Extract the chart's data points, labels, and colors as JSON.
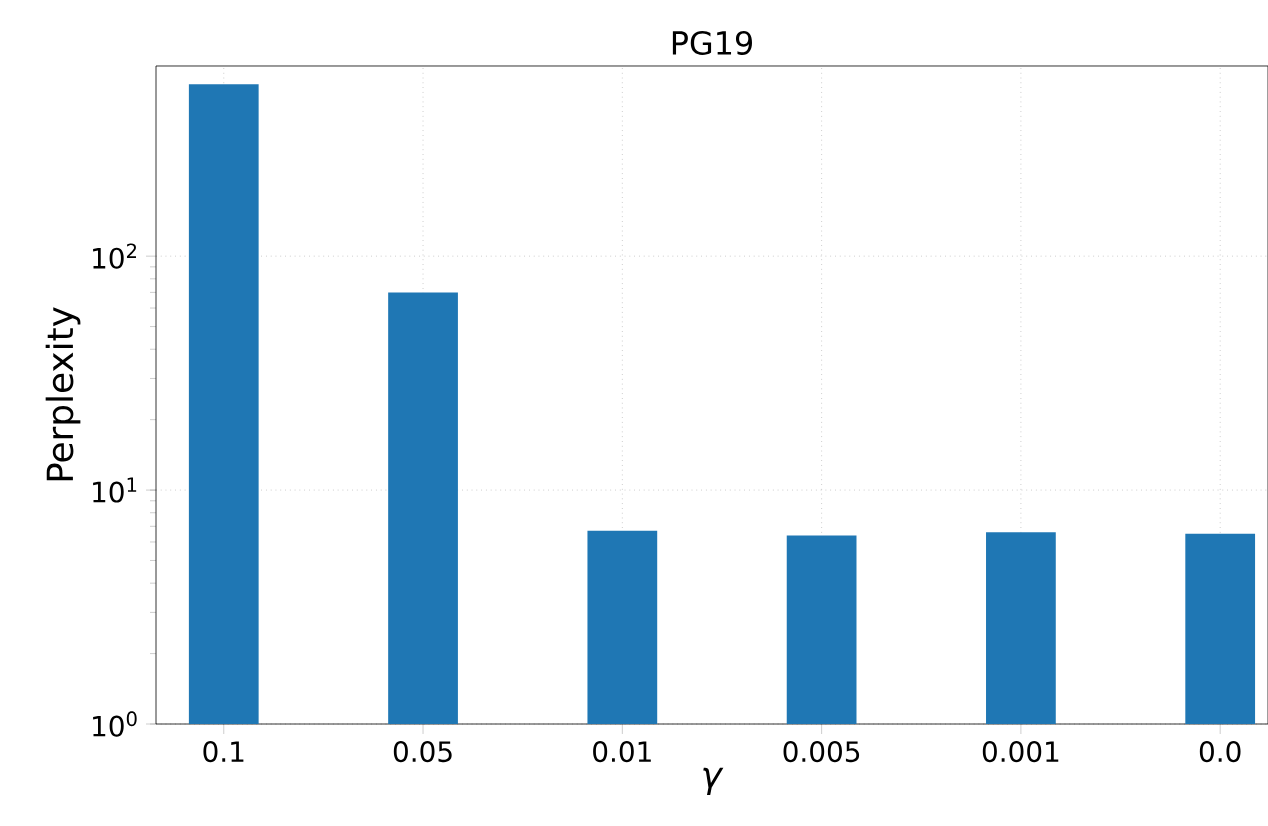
{
  "chart_data": {
    "type": "bar",
    "title": "PG19",
    "xlabel": "*γ*",
    "ylabel": "Perplexity",
    "categories": [
      "0.1",
      "0.05",
      "0.01",
      "0.005",
      "0.001",
      "0.0"
    ],
    "values": [
      543,
      70,
      6.7,
      6.4,
      6.6,
      6.5
    ],
    "color": "#1f77b4",
    "log": "y",
    "ylim": [
      1,
      650
    ],
    "yticks": [
      {
        "value": 1,
        "label": "10$^{0}$"
      },
      {
        "value": 10,
        "label": "10$^{1}$"
      },
      {
        "value": 100,
        "label": "10$^{2}$"
      }
    ],
    "grid": true
  }
}
